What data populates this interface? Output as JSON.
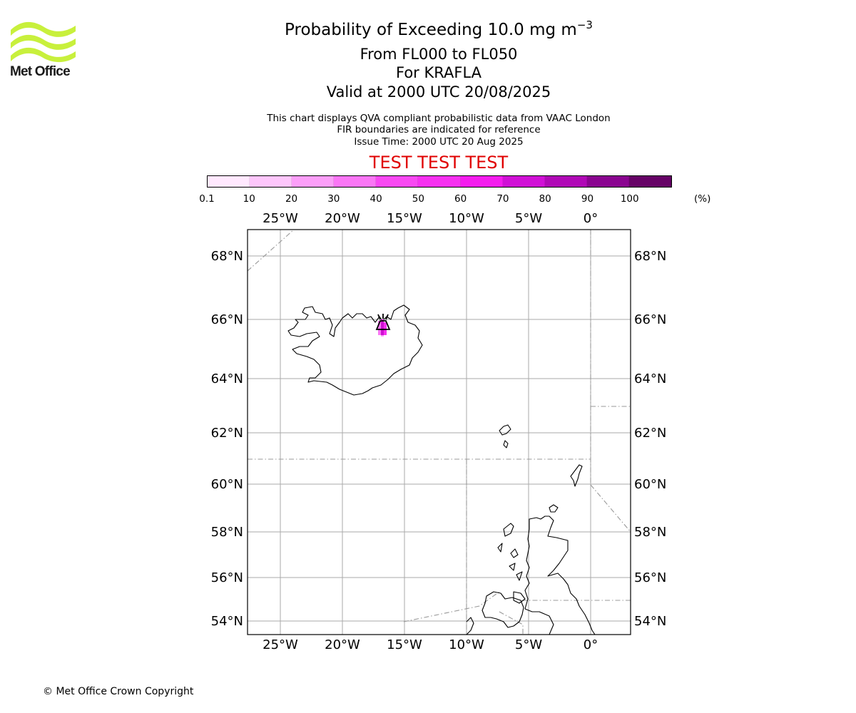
{
  "header": {
    "title": "Probability of Exceeding 10.0 mg m",
    "title_exponent": "−3",
    "level_range": "From FL000 to FL050",
    "volcano": "For KRAFLA",
    "valid_time": "Valid at 2000 UTC 20/08/2025",
    "info_line1": "This chart displays QVA compliant probabilistic data from VAAC London",
    "info_line2": "FIR boundaries are indicated for reference",
    "issue_time": "Issue Time: 2000 UTC 20 Aug 2025",
    "test_banner": "TEST TEST TEST"
  },
  "logo": {
    "text": "Met Office",
    "color": "#c8f03c"
  },
  "colorbar": {
    "ticks": [
      "0.1",
      "10",
      "20",
      "30",
      "40",
      "50",
      "60",
      "70",
      "80",
      "90",
      "100"
    ],
    "unit": "(%)",
    "colors": [
      "#ffe8fe",
      "#fdc6fb",
      "#fb9ef8",
      "#fa76f5",
      "#f848f2",
      "#f630f0",
      "#f41cee",
      "#d010d6",
      "#b008b6",
      "#8a0490",
      "#660266"
    ]
  },
  "map": {
    "lon_labels": [
      "25°W",
      "20°W",
      "15°W",
      "10°W",
      "5°W",
      "0°"
    ],
    "lat_labels": [
      "68°N",
      "66°N",
      "64°N",
      "62°N",
      "60°N",
      "58°N",
      "56°N",
      "54°N"
    ],
    "grid_color": "#aaaaaa",
    "fir_color": "#999999",
    "volcano_marker": "volcano-icon"
  },
  "footer": {
    "copyright": "© Met Office Crown Copyright"
  }
}
